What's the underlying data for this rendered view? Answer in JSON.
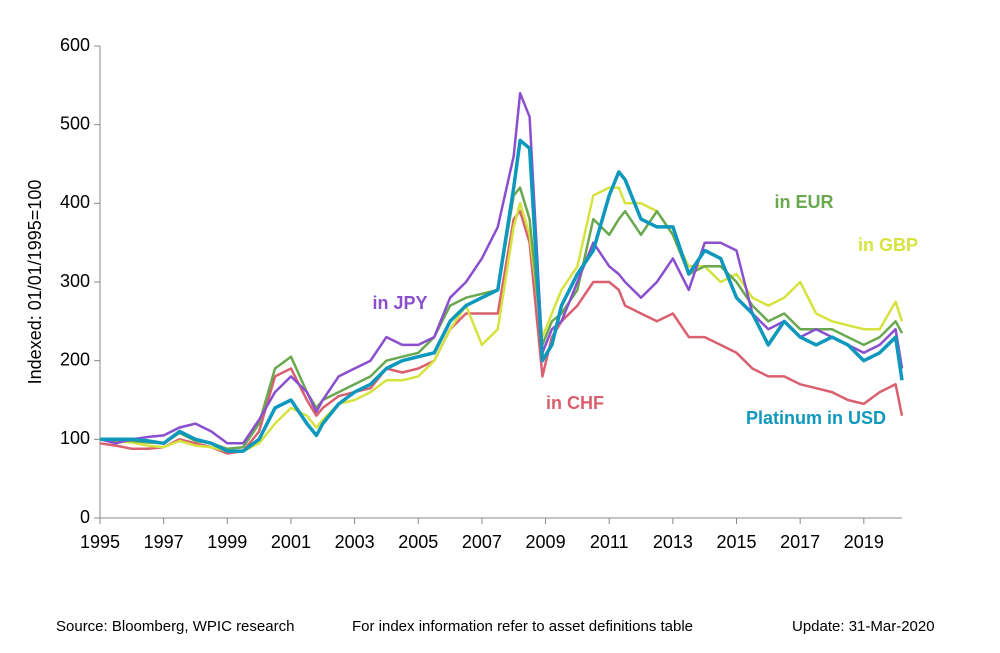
{
  "chart_data": {
    "type": "line",
    "y_label": "Indexed: 01/01/1995=100",
    "source": "Source: Bloomberg, WPIC research",
    "note": "For index information refer to asset definitions table",
    "update": "Update: 31-Mar-2020",
    "xlim": [
      1995,
      2020.2
    ],
    "xticks": [
      1995,
      1997,
      1999,
      2001,
      2003,
      2005,
      2007,
      2009,
      2011,
      2013,
      2015,
      2017,
      2019
    ],
    "ylim": [
      0,
      600
    ],
    "yticks": [
      0,
      100,
      200,
      300,
      400,
      500,
      600
    ],
    "grid": false,
    "x": [
      1995,
      1995.5,
      1996,
      1996.5,
      1997,
      1997.5,
      1998,
      1998.5,
      1999,
      1999.5,
      2000,
      2000.5,
      2001,
      2001.5,
      2001.8,
      2002,
      2002.5,
      2003,
      2003.5,
      2004,
      2004.5,
      2005,
      2005.5,
      2006,
      2006.5,
      2007,
      2007.5,
      2008,
      2008.2,
      2008.5,
      2008.9,
      2009.2,
      2009.5,
      2010,
      2010.5,
      2011,
      2011.3,
      2011.5,
      2012,
      2012.5,
      2013,
      2013.5,
      2014,
      2014.5,
      2015,
      2015.5,
      2016,
      2016.5,
      2017,
      2017.5,
      2018,
      2018.5,
      2019,
      2019.5,
      2020,
      2020.2
    ],
    "series": [
      {
        "name": "in CHF",
        "color": "#d9606e",
        "values": [
          95,
          92,
          88,
          88,
          90,
          100,
          95,
          90,
          82,
          85,
          110,
          180,
          190,
          150,
          130,
          140,
          155,
          160,
          165,
          190,
          185,
          190,
          200,
          240,
          260,
          260,
          260,
          380,
          390,
          350,
          180,
          230,
          250,
          270,
          300,
          300,
          290,
          270,
          260,
          250,
          260,
          230,
          230,
          220,
          210,
          190,
          180,
          180,
          170,
          165,
          160,
          150,
          145,
          160,
          170,
          130
        ]
      },
      {
        "name": "in GBP",
        "color": "#d6e33f",
        "values": [
          100,
          98,
          96,
          92,
          90,
          98,
          92,
          90,
          85,
          85,
          95,
          120,
          140,
          130,
          115,
          125,
          145,
          150,
          160,
          175,
          175,
          180,
          200,
          240,
          270,
          220,
          240,
          370,
          400,
          360,
          230,
          260,
          290,
          320,
          410,
          420,
          420,
          400,
          400,
          390,
          360,
          320,
          320,
          300,
          310,
          280,
          270,
          280,
          300,
          260,
          250,
          245,
          240,
          240,
          275,
          250
        ]
      },
      {
        "name": "in EUR",
        "color": "#6aa84f",
        "values": [
          100,
          98,
          98,
          96,
          95,
          108,
          98,
          95,
          88,
          90,
          120,
          190,
          205,
          160,
          140,
          150,
          160,
          170,
          180,
          200,
          205,
          210,
          230,
          270,
          280,
          285,
          290,
          410,
          420,
          380,
          220,
          250,
          260,
          290,
          380,
          360,
          380,
          390,
          360,
          390,
          360,
          310,
          320,
          320,
          300,
          270,
          250,
          260,
          240,
          240,
          240,
          230,
          220,
          230,
          250,
          235
        ]
      },
      {
        "name": "in JPY",
        "color": "#8a4fcf",
        "values": [
          100,
          95,
          100,
          103,
          105,
          115,
          120,
          110,
          95,
          95,
          125,
          160,
          180,
          160,
          135,
          150,
          180,
          190,
          200,
          230,
          220,
          220,
          230,
          280,
          300,
          330,
          370,
          460,
          540,
          510,
          210,
          240,
          250,
          300,
          350,
          320,
          310,
          300,
          280,
          300,
          330,
          290,
          350,
          350,
          340,
          260,
          240,
          250,
          230,
          240,
          230,
          220,
          210,
          220,
          240,
          190
        ]
      },
      {
        "name": "Platinum in USD",
        "color": "#0e98bd",
        "values": [
          100,
          100,
          100,
          98,
          95,
          110,
          100,
          95,
          85,
          85,
          100,
          140,
          150,
          120,
          105,
          120,
          145,
          160,
          170,
          190,
          200,
          205,
          210,
          250,
          270,
          280,
          290,
          420,
          480,
          470,
          200,
          220,
          270,
          310,
          340,
          410,
          440,
          430,
          380,
          370,
          370,
          310,
          340,
          330,
          280,
          260,
          220,
          250,
          230,
          220,
          230,
          220,
          200,
          210,
          230,
          175
        ]
      }
    ]
  }
}
